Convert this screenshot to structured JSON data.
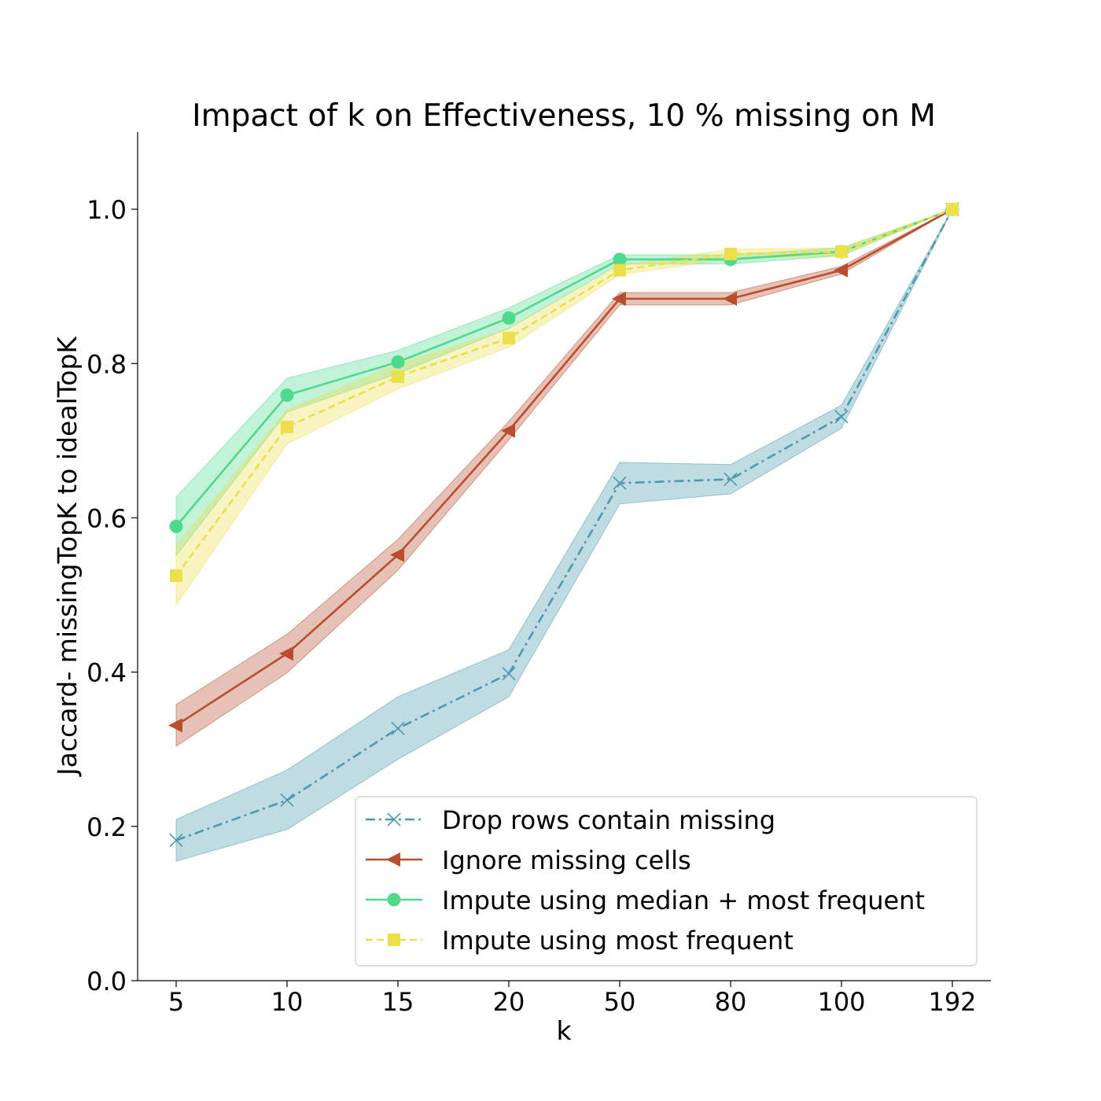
{
  "chart_data": {
    "type": "line",
    "title": "Impact of k on Effectiveness, 10 % missing on M",
    "xlabel": "k",
    "ylabel": "Jaccard- missingTopK to idealTopK",
    "categories": [
      "5",
      "10",
      "15",
      "20",
      "50",
      "80",
      "100",
      "192"
    ],
    "ylim": [
      0,
      1.1
    ],
    "yticks": [
      "0.0",
      "0.2",
      "0.4",
      "0.6",
      "0.8",
      "1.0"
    ],
    "grid": false,
    "legend_position": "lower-right",
    "series": [
      {
        "name": "Drop rows contain missing",
        "color": "#4b9aae",
        "marker": "x",
        "dash": "dashdot",
        "values": [
          0.182,
          0.234,
          0.327,
          0.398,
          0.645,
          0.65,
          0.731,
          1.0
        ],
        "lower": [
          0.155,
          0.196,
          0.287,
          0.368,
          0.618,
          0.631,
          0.716,
          1.0
        ],
        "upper": [
          0.209,
          0.273,
          0.368,
          0.429,
          0.672,
          0.669,
          0.746,
          1.0
        ]
      },
      {
        "name": "Ignore missing cells",
        "color": "#b84e2e",
        "marker": "triangle-left",
        "dash": "solid",
        "values": [
          0.331,
          0.424,
          0.552,
          0.713,
          0.884,
          0.884,
          0.921,
          1.0
        ],
        "lower": [
          0.304,
          0.399,
          0.532,
          0.701,
          0.876,
          0.876,
          0.916,
          1.0
        ],
        "upper": [
          0.358,
          0.449,
          0.572,
          0.725,
          0.892,
          0.892,
          0.926,
          1.0
        ]
      },
      {
        "name": "Impute using median + most frequent",
        "color": "#4fd98c",
        "marker": "circle",
        "dash": "solid",
        "values": [
          0.589,
          0.759,
          0.802,
          0.859,
          0.935,
          0.935,
          0.945,
          1.0
        ],
        "lower": [
          0.551,
          0.737,
          0.787,
          0.846,
          0.929,
          0.929,
          0.94,
          1.0
        ],
        "upper": [
          0.627,
          0.781,
          0.817,
          0.872,
          0.941,
          0.941,
          0.95,
          1.0
        ]
      },
      {
        "name": "Impute using most frequent",
        "color": "#ebe04c",
        "marker": "square",
        "dash": "dashed",
        "values": [
          0.525,
          0.718,
          0.783,
          0.833,
          0.921,
          0.942,
          0.945,
          1.0
        ],
        "lower": [
          0.487,
          0.696,
          0.767,
          0.821,
          0.915,
          0.936,
          0.94,
          1.0
        ],
        "upper": [
          0.563,
          0.74,
          0.799,
          0.845,
          0.927,
          0.948,
          0.95,
          1.0
        ]
      }
    ]
  }
}
